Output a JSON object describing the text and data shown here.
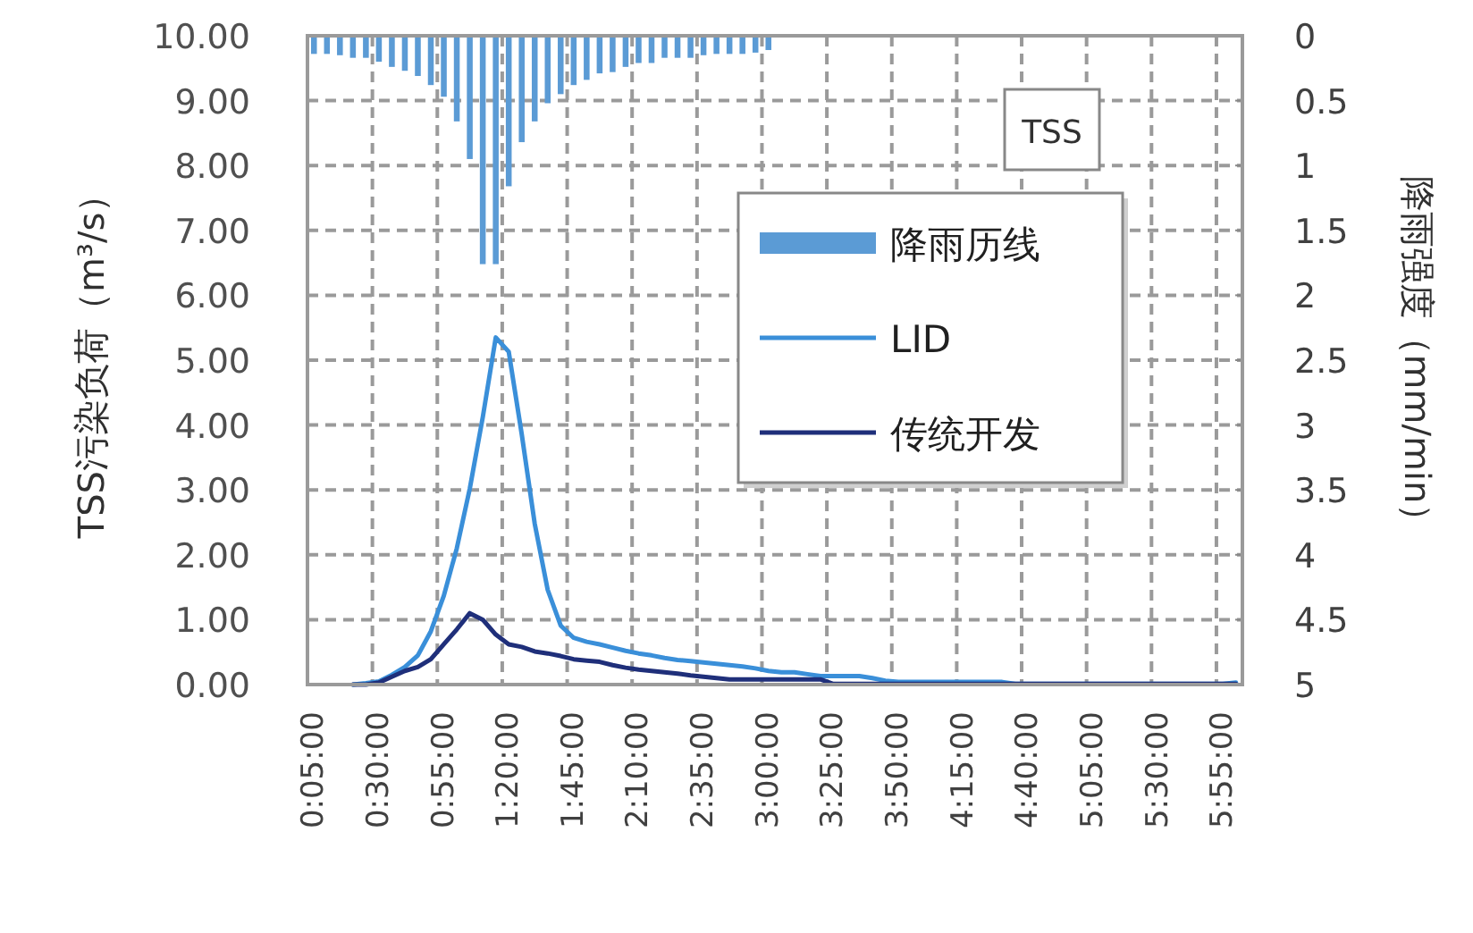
{
  "chart_data": {
    "type": "line",
    "categories": [
      "0:05:00",
      null,
      null,
      null,
      null,
      "0:30:00",
      null,
      null,
      null,
      null,
      "0:55:00",
      null,
      null,
      null,
      null,
      "1:20:00",
      null,
      null,
      null,
      null,
      "1:45:00",
      null,
      null,
      null,
      null,
      "2:10:00",
      null,
      null,
      null,
      null,
      "2:35:00",
      null,
      null,
      null,
      null,
      "3:00:00",
      null,
      null,
      null,
      null,
      "3:25:00",
      null,
      null,
      null,
      null,
      "3:50:00",
      null,
      null,
      null,
      null,
      "4:15:00",
      null,
      null,
      null,
      null,
      "4:40:00",
      null,
      null,
      null,
      null,
      "5:05:00",
      null,
      null,
      null,
      null,
      "5:30:00",
      null,
      null,
      null,
      null,
      "5:55:00",
      null
    ],
    "series": [
      {
        "name": "降雨历线",
        "type": "bar",
        "axis": "y2",
        "color": "#5b9bd5",
        "values": [
          0.14,
          0.14,
          0.15,
          0.17,
          0.17,
          0.2,
          0.24,
          0.27,
          0.31,
          0.38,
          0.47,
          0.66,
          0.95,
          1.76,
          1.76,
          1.16,
          0.82,
          0.66,
          0.52,
          0.45,
          0.38,
          0.34,
          0.29,
          0.28,
          0.24,
          0.21,
          0.21,
          0.17,
          0.17,
          0.17,
          0.15,
          0.14,
          0.14,
          0.14,
          0.13,
          0.11,
          null,
          null,
          null,
          null,
          null,
          null,
          null,
          null,
          null,
          null,
          null,
          null,
          null,
          null,
          null,
          null,
          null,
          null,
          null,
          null,
          null,
          null,
          null,
          null,
          null,
          null,
          null,
          null,
          null,
          null,
          null,
          null,
          null,
          null,
          null,
          null
        ]
      },
      {
        "name": "LID",
        "color": "#3a8fd9",
        "values": [
          null,
          null,
          null,
          0,
          0.02,
          0.05,
          0.15,
          0.27,
          0.45,
          0.82,
          1.37,
          2.1,
          3.02,
          4.12,
          5.35,
          5.13,
          3.86,
          2.48,
          1.46,
          0.91,
          0.72,
          0.66,
          0.62,
          0.57,
          0.52,
          0.48,
          0.45,
          0.41,
          0.38,
          0.36,
          0.34,
          0.32,
          0.3,
          0.28,
          0.25,
          0.21,
          0.19,
          0.19,
          0.16,
          0.13,
          0.13,
          0.13,
          0.13,
          0.1,
          0.06,
          0.04,
          0.04,
          0.04,
          0.04,
          0.04,
          0.04,
          0.04,
          0.04,
          0.04,
          0.01,
          0.01,
          0.01,
          0.01,
          0.01,
          0.01,
          0.01,
          0.01,
          0.01,
          0.01,
          0.01,
          0.01,
          0.01,
          0.01,
          0.01,
          0.01,
          0.01,
          0.03
        ]
      },
      {
        "name": "传统开发",
        "color": "#1f2f7a",
        "values": [
          null,
          null,
          null,
          0,
          0,
          0.03,
          0.12,
          0.21,
          0.27,
          0.39,
          0.62,
          0.85,
          1.1,
          1.0,
          0.77,
          0.62,
          0.58,
          0.51,
          0.48,
          0.44,
          0.39,
          0.37,
          0.35,
          0.3,
          0.26,
          0.23,
          0.21,
          0.19,
          0.17,
          0.14,
          0.12,
          0.1,
          0.08,
          0.08,
          0.08,
          0.08,
          0.08,
          0.08,
          0.08,
          0.08,
          0.01,
          0.01,
          0.01,
          0.01,
          0.01,
          0.01,
          0.01,
          0.01,
          0.01,
          0.01,
          0.01,
          0.01,
          0.01,
          0.01,
          0.01,
          0.01,
          0.01,
          0.01,
          0.01,
          0.01,
          0.01,
          0.01,
          0.01,
          0.01,
          0.01,
          0.01,
          0.01,
          0.01,
          0.01,
          0.01,
          0.01,
          0.01
        ]
      }
    ],
    "ylabel": "TSS污染负荷（m³/s）",
    "y2label": "降雨强度（mm/min）",
    "ylim": [
      0,
      10
    ],
    "yticks": [
      {
        "value": 0,
        "label": "0.00"
      },
      {
        "value": 1,
        "label": "1.00"
      },
      {
        "value": 2,
        "label": "2.00"
      },
      {
        "value": 3,
        "label": "3.00"
      },
      {
        "value": 4,
        "label": "4.00"
      },
      {
        "value": 5,
        "label": "5.00"
      },
      {
        "value": 6,
        "label": "6.00"
      },
      {
        "value": 7,
        "label": "7.00"
      },
      {
        "value": 8,
        "label": "8.00"
      },
      {
        "value": 9,
        "label": "9.00"
      },
      {
        "value": 10,
        "label": "10.00"
      }
    ],
    "y2lim": [
      5,
      0
    ],
    "y2ticks": [
      0,
      0.5,
      1,
      1.5,
      2,
      2.5,
      3,
      3.5,
      4,
      4.5,
      5
    ],
    "grid": true,
    "legend": "top right",
    "annotations": [
      "TSS"
    ]
  }
}
